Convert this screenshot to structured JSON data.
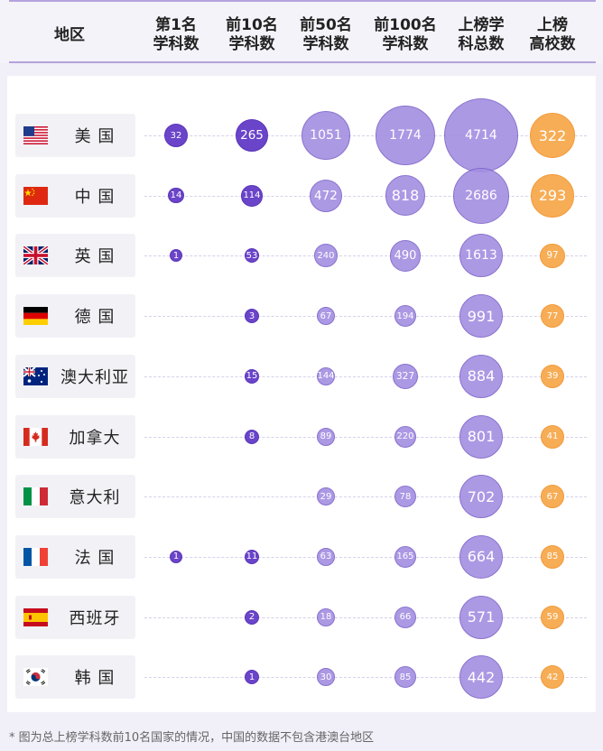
{
  "header": {
    "region": "地区",
    "columns": [
      "第1名\n学科数",
      "前10名\n学科数",
      "前50名\n学科数",
      "前100名\n学科数",
      "上榜学\n科总数",
      "上榜\n高校数"
    ]
  },
  "footnote": "* 图为总上榜学科数前10名国家的情况，中国的数据不包含港澳台地区",
  "colors": {
    "purple_dark": "#6a44c9",
    "purple_light": "#a48fe2",
    "orange": "#f7ad55"
  },
  "chart_data": {
    "type": "table",
    "columns": [
      "第1名学科数",
      "前10名学科数",
      "前50名学科数",
      "前100名学科数",
      "上榜学科总数",
      "上榜高校数"
    ],
    "rows": [
      {
        "name": "美 国",
        "flag": "us-flag-icon",
        "values": [
          32,
          265,
          1051,
          1774,
          4714,
          322
        ]
      },
      {
        "name": "中 国",
        "flag": "cn-flag-icon",
        "values": [
          14,
          114,
          472,
          818,
          2686,
          293
        ]
      },
      {
        "name": "英 国",
        "flag": "uk-flag-icon",
        "values": [
          1,
          53,
          240,
          490,
          1613,
          97
        ]
      },
      {
        "name": "德 国",
        "flag": "de-flag-icon",
        "values": [
          null,
          3,
          67,
          194,
          991,
          77
        ]
      },
      {
        "name": "澳大利亚",
        "flag": "au-flag-icon",
        "values": [
          null,
          15,
          144,
          327,
          884,
          39
        ]
      },
      {
        "name": "加拿大",
        "flag": "ca-flag-icon",
        "values": [
          null,
          8,
          89,
          220,
          801,
          41
        ]
      },
      {
        "name": "意大利",
        "flag": "it-flag-icon",
        "values": [
          null,
          null,
          29,
          78,
          702,
          67
        ]
      },
      {
        "name": "法 国",
        "flag": "fr-flag-icon",
        "values": [
          1,
          11,
          63,
          165,
          664,
          85
        ]
      },
      {
        "name": "西班牙",
        "flag": "es-flag-icon",
        "values": [
          null,
          2,
          18,
          66,
          571,
          59
        ]
      },
      {
        "name": "韩 国",
        "flag": "kr-flag-icon",
        "values": [
          null,
          1,
          30,
          85,
          442,
          42
        ]
      }
    ]
  }
}
